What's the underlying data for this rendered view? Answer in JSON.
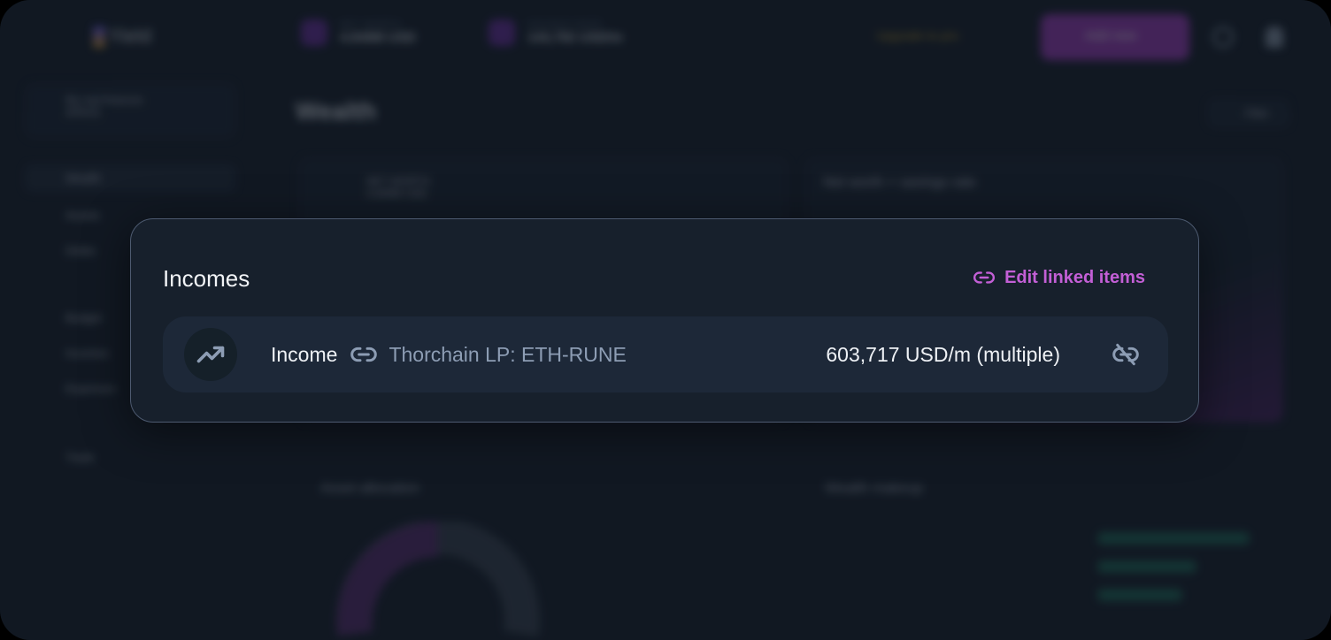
{
  "background": {
    "logo": "Yield",
    "net_worth": {
      "label": "NET WORTH",
      "value": "4.849M USD"
    },
    "savings_rate": {
      "label": "SAVINGS RATE",
      "value": "143,792 USD/m"
    },
    "upgrade": "Upgrade to pro",
    "add_new": "Add new",
    "space": {
      "name": "My real finances",
      "type": "SPACE"
    },
    "page_title": "Wealth",
    "filter": "Filter",
    "sidebar": [
      "Wealth",
      "Assets",
      "Debts",
      "Budget",
      "Incomes",
      "Expenses",
      "Trash"
    ],
    "net_worth_card": {
      "label": "NET WORTH",
      "value": "4.849M USD"
    },
    "chart_title": "Net worth + savings rate",
    "asset_allocation": "Asset allocation",
    "wealth_makeup": "Wealth makeup"
  },
  "modal": {
    "title": "Incomes",
    "edit_label": "Edit linked items",
    "accent": "#c35fd6",
    "items": [
      {
        "type": "Income",
        "icon": "trending-up-icon",
        "source": "Thorchain LP: ETH-RUNE",
        "amount": "603,717 USD/m (multiple)"
      }
    ]
  }
}
